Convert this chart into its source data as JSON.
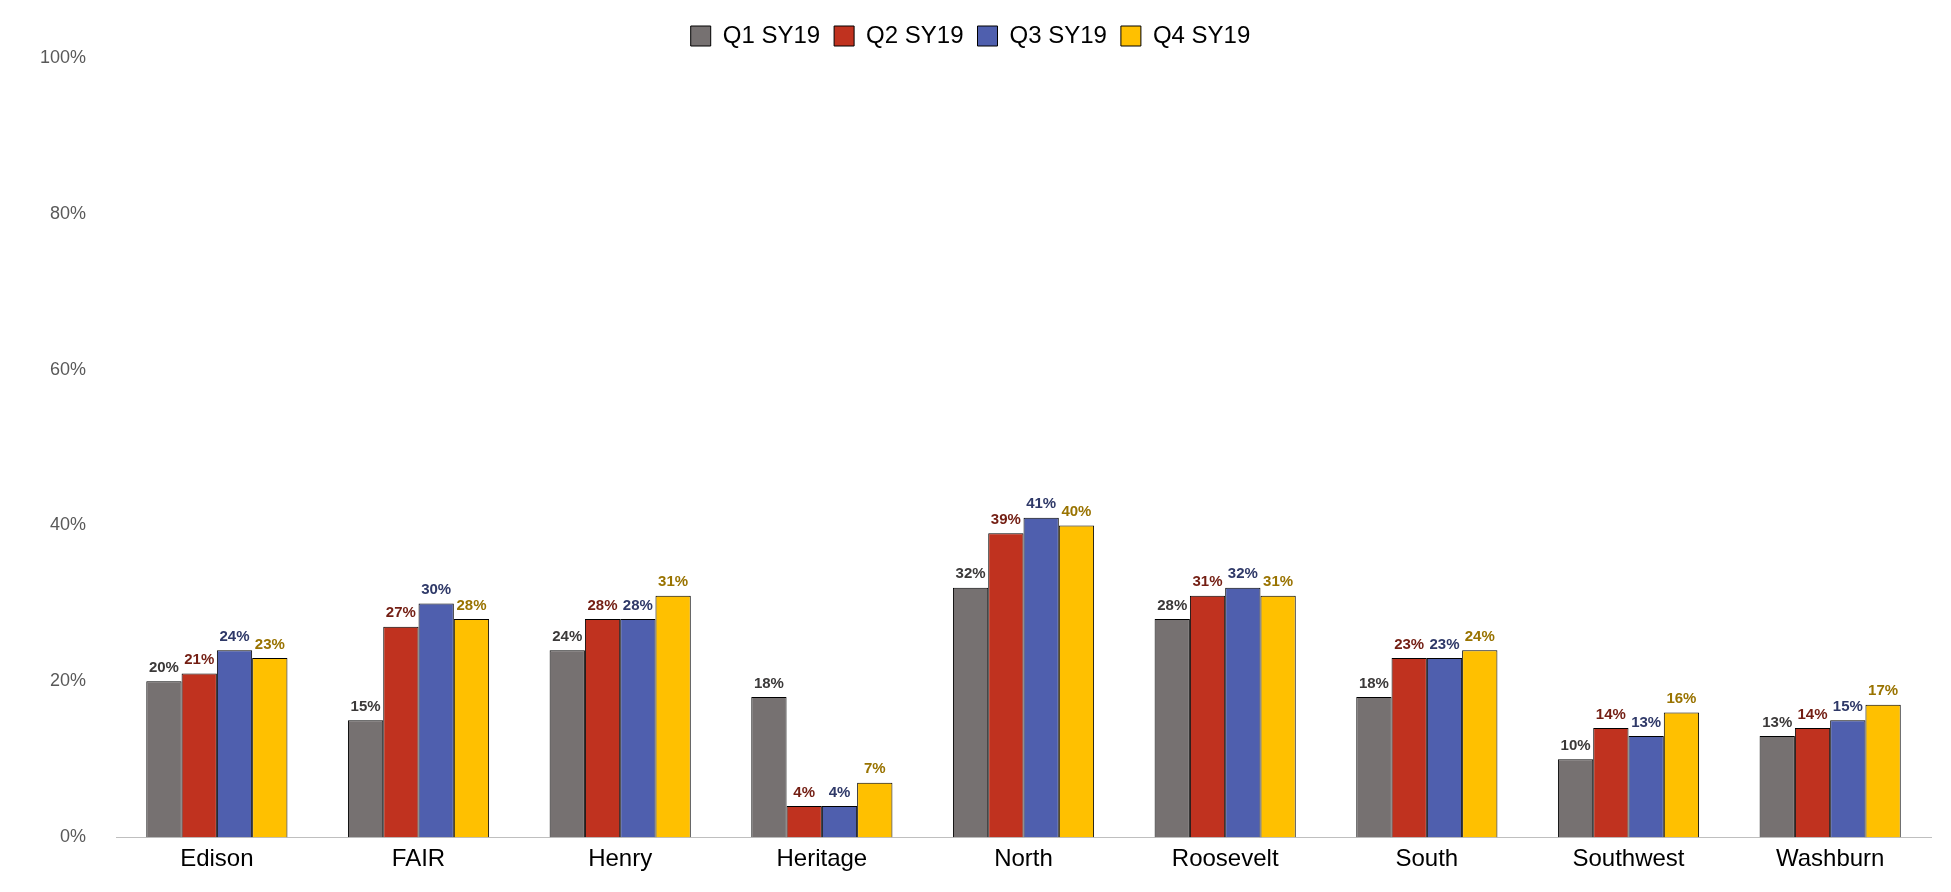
{
  "chart_data": {
    "type": "bar",
    "categories": [
      "Edison",
      "FAIR",
      "Henry",
      "Heritage",
      "North",
      "Roosevelt",
      "South",
      "Southwest",
      "Washburn"
    ],
    "series": [
      {
        "name": "Q1 SY19",
        "color": "#767171",
        "values": [
          20,
          15,
          24,
          18,
          32,
          28,
          18,
          10,
          13
        ],
        "value_labels": [
          "20%",
          "15%",
          "24%",
          "18%",
          "32%",
          "28%",
          "18%",
          "10%",
          "13%"
        ]
      },
      {
        "name": "Q2 SY19",
        "color": "#c0321f",
        "values": [
          21,
          27,
          28,
          4,
          39,
          31,
          23,
          14,
          14
        ],
        "value_labels": [
          "21%",
          "27%",
          "28%",
          "4%",
          "39%",
          "31%",
          "23%",
          "14%",
          "14%"
        ]
      },
      {
        "name": "Q3 SY19",
        "color": "#4f5fae",
        "values": [
          24,
          30,
          28,
          4,
          41,
          32,
          23,
          13,
          15
        ],
        "value_labels": [
          "24%",
          "30%",
          "28%",
          "4%",
          "41%",
          "32%",
          "23%",
          "13%",
          "15%"
        ]
      },
      {
        "name": "Q4 SY19",
        "color": "#ffc000",
        "values": [
          23,
          28,
          31,
          7,
          40,
          31,
          24,
          16,
          17
        ],
        "value_labels": [
          "23%",
          "28%",
          "31%",
          "7%",
          "40%",
          "31%",
          "24%",
          "16%",
          "17%"
        ]
      }
    ],
    "ylim": [
      0,
      100
    ],
    "yticks": [
      {
        "value": 0,
        "label": "0%"
      },
      {
        "value": 20,
        "label": "20%"
      },
      {
        "value": 40,
        "label": "40%"
      },
      {
        "value": 60,
        "label": "60%"
      },
      {
        "value": 80,
        "label": "80%"
      },
      {
        "value": 100,
        "label": "100%"
      }
    ],
    "grid": false,
    "legend": "top"
  }
}
